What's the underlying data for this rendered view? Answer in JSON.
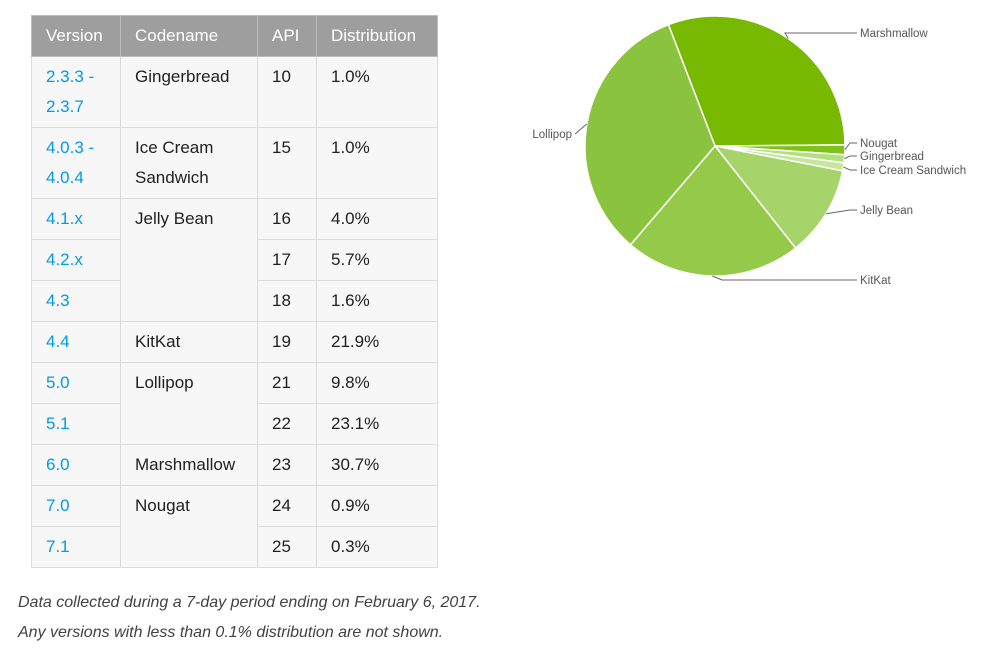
{
  "table": {
    "headers": [
      "Version",
      "Codename",
      "API",
      "Distribution"
    ],
    "rows": [
      {
        "version": [
          "2.3.3 -",
          "2.3.7"
        ],
        "codename": [
          "Gingerbread"
        ],
        "api": "10",
        "distribution": "1.0%"
      },
      {
        "version": [
          "4.0.3 -",
          "4.0.4"
        ],
        "codename": [
          "Ice Cream",
          "Sandwich"
        ],
        "api": "15",
        "distribution": "1.0%"
      },
      {
        "version": [
          "4.1.x"
        ],
        "codename": [
          "Jelly Bean"
        ],
        "api": "16",
        "distribution": "4.0%"
      },
      {
        "version": [
          "4.2.x"
        ],
        "codename": null,
        "api": "17",
        "distribution": "5.7%"
      },
      {
        "version": [
          "4.3"
        ],
        "codename": null,
        "api": "18",
        "distribution": "1.6%"
      },
      {
        "version": [
          "4.4"
        ],
        "codename": [
          "KitKat"
        ],
        "api": "19",
        "distribution": "21.9%"
      },
      {
        "version": [
          "5.0"
        ],
        "codename": [
          "Lollipop"
        ],
        "api": "21",
        "distribution": "9.8%"
      },
      {
        "version": [
          "5.1"
        ],
        "codename": null,
        "api": "22",
        "distribution": "23.1%"
      },
      {
        "version": [
          "6.0"
        ],
        "codename": [
          "Marshmallow"
        ],
        "api": "23",
        "distribution": "30.7%"
      },
      {
        "version": [
          "7.0"
        ],
        "codename": [
          "Nougat"
        ],
        "api": "24",
        "distribution": "0.9%"
      },
      {
        "version": [
          "7.1"
        ],
        "codename": null,
        "api": "25",
        "distribution": "0.3%"
      }
    ]
  },
  "notes": {
    "line1": "Data collected during a 7-day period ending on February 6, 2017.",
    "line2": "Any versions with less than 0.1% distribution are not shown."
  },
  "chart_data": {
    "type": "pie",
    "slices": [
      {
        "label": "Marshmallow",
        "value": 30.7,
        "color": "#76b900"
      },
      {
        "label": "Nougat",
        "value": 1.2,
        "color": "#7ec11a"
      },
      {
        "label": "Gingerbread",
        "value": 1.0,
        "color": "#b5df7f"
      },
      {
        "label": "Ice Cream Sandwich",
        "value": 1.0,
        "color": "#c6e69c"
      },
      {
        "label": "Jelly Bean",
        "value": 11.3,
        "color": "#a6d46a"
      },
      {
        "label": "KitKat",
        "value": 21.9,
        "color": "#94c94a"
      },
      {
        "label": "Lollipop",
        "value": 32.9,
        "color": "#8ac33e"
      }
    ]
  }
}
